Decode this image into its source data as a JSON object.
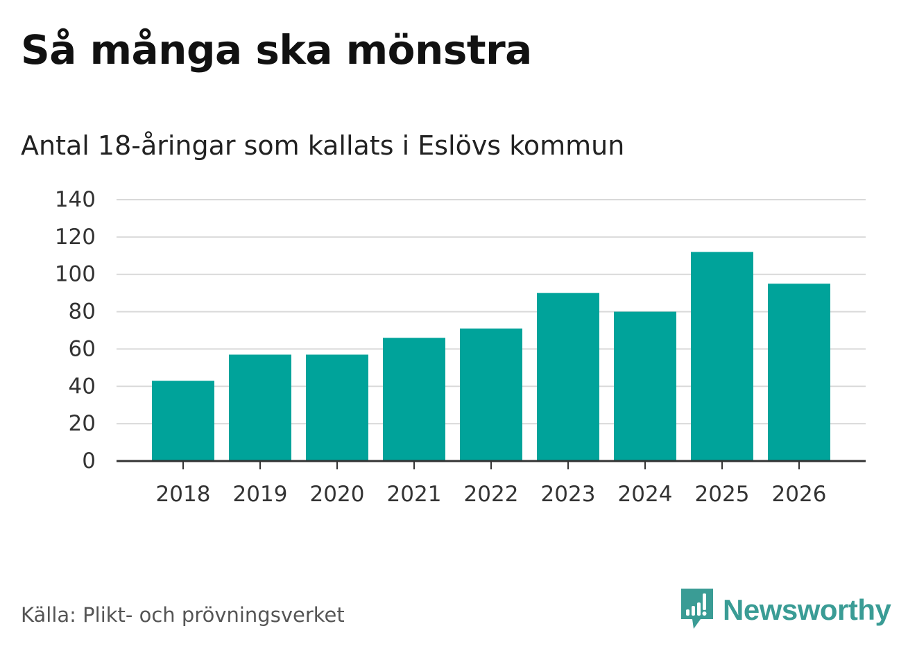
{
  "header": {
    "title": "Så många ska mönstra",
    "subtitle": "Antal 18-åringar som kallats i Eslövs kommun"
  },
  "footer": {
    "source": "Källa: Plikt- och prövningsverket",
    "brand": "Newsworthy",
    "brand_icon": "newsworthy-logo-icon"
  },
  "colors": {
    "bar": "#00a39a",
    "grid": "#d9d9d9",
    "axis": "#333333",
    "brand": "#3a9c95"
  },
  "chart_data": {
    "type": "bar",
    "title": "Så många ska mönstra",
    "subtitle": "Antal 18-åringar som kallats i Eslövs kommun",
    "xlabel": "",
    "ylabel": "",
    "categories": [
      "2018",
      "2019",
      "2020",
      "2021",
      "2022",
      "2023",
      "2024",
      "2025",
      "2026"
    ],
    "values": [
      43,
      57,
      57,
      66,
      71,
      90,
      80,
      112,
      95
    ],
    "ylim": [
      0,
      140
    ],
    "yticks": [
      0,
      20,
      40,
      60,
      80,
      100,
      120,
      140
    ],
    "grid": true,
    "legend": "none"
  }
}
